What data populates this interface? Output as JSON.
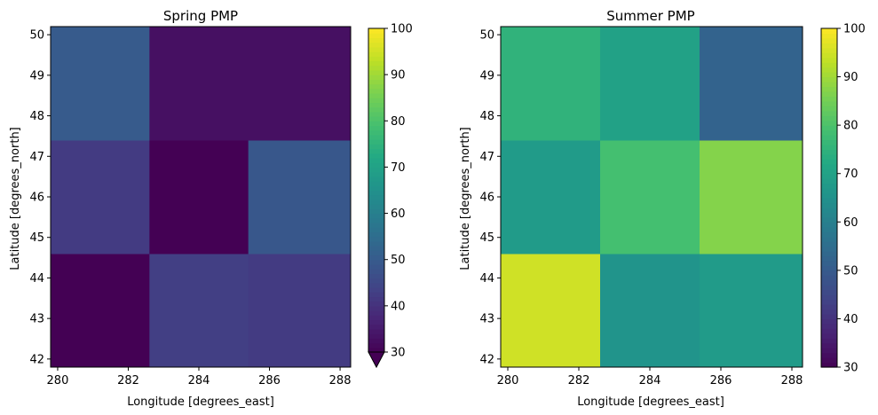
{
  "colormap": "viridis",
  "chart_data": [
    {
      "type": "heatmap",
      "title": "Spring PMP",
      "xlabel": "Longitude [degrees_east]",
      "ylabel": "Latitude [degrees_north]",
      "x_edges": [
        279.8,
        282.6,
        285.4,
        288.3
      ],
      "y_edges": [
        41.8,
        44.6,
        47.4,
        50.2
      ],
      "xticks": [
        280,
        282,
        284,
        286,
        288
      ],
      "yticks": [
        42,
        43,
        44,
        45,
        46,
        47,
        48,
        49,
        50
      ],
      "xlim": [
        279.8,
        288.3
      ],
      "ylim": [
        41.8,
        50.2
      ],
      "values": [
        [
          28,
          43,
          42
        ],
        [
          42,
          28,
          49
        ],
        [
          50,
          33,
          33
        ]
      ],
      "colorbar": {
        "vmin": 30,
        "vmax": 100,
        "ticks": [
          30,
          40,
          50,
          60,
          70,
          80,
          90,
          100
        ],
        "extend": "min"
      }
    },
    {
      "type": "heatmap",
      "title": "Summer PMP",
      "xlabel": "Longitude [degrees_east]",
      "ylabel": "Latitude [degrees_north]",
      "x_edges": [
        279.8,
        282.6,
        285.4,
        288.3
      ],
      "y_edges": [
        41.8,
        44.6,
        47.4,
        50.2
      ],
      "xticks": [
        280,
        282,
        284,
        286,
        288
      ],
      "yticks": [
        42,
        43,
        44,
        45,
        46,
        47,
        48,
        49,
        50
      ],
      "xlim": [
        279.8,
        288.3
      ],
      "ylim": [
        41.8,
        50.2
      ],
      "values": [
        [
          95,
          66,
          68
        ],
        [
          68,
          79,
          87
        ],
        [
          75,
          70,
          52
        ]
      ],
      "colorbar": {
        "vmin": 30,
        "vmax": 100,
        "ticks": [
          30,
          40,
          50,
          60,
          70,
          80,
          90,
          100
        ],
        "extend": "neither"
      }
    }
  ]
}
